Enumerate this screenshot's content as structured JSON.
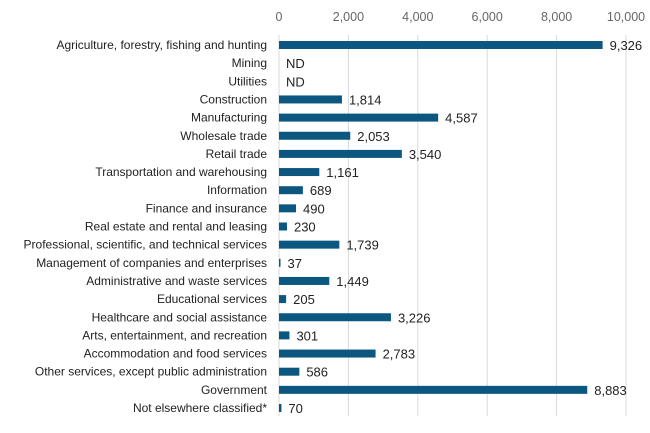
{
  "chart_data": {
    "type": "bar",
    "orientation": "horizontal",
    "title": "",
    "xlabel": "",
    "ylabel": "",
    "xlim": [
      0,
      10000
    ],
    "x_ticks": [
      "0",
      "2,000",
      "4,000",
      "6,000",
      "8,000",
      "10,000"
    ],
    "x_tick_values": [
      0,
      2000,
      4000,
      6000,
      8000,
      10000
    ],
    "grid": "vertical",
    "bar_color": "#0b5780",
    "categories": [
      "Agriculture, forestry, fishing and hunting",
      "Mining",
      "Utilities",
      "Construction",
      "Manufacturing",
      "Wholesale trade",
      "Retail trade",
      "Transportation and warehousing",
      "Information",
      "Finance and insurance",
      "Real estate and rental and leasing",
      "Professional, scientific, and technical services",
      "Management of companies and enterprises",
      "Administrative and waste services",
      "Educational services",
      "Healthcare and social assistance",
      "Arts, entertainment, and recreation",
      "Accommodation and food services",
      "Other services, except public administration",
      "Government",
      "Not elsewhere classified*"
    ],
    "values": [
      9326,
      null,
      null,
      1814,
      4587,
      2053,
      3540,
      1161,
      689,
      490,
      230,
      1739,
      37,
      1449,
      205,
      3226,
      301,
      2783,
      586,
      8883,
      70
    ],
    "labels": [
      "9,326",
      "ND",
      "ND",
      "1,814",
      "4,587",
      "2,053",
      "3,540",
      "1,161",
      "689",
      "490",
      "230",
      "1,739",
      "37",
      "1,449",
      "205",
      "3,226",
      "301",
      "2,783",
      "586",
      "8,883",
      "70"
    ]
  }
}
